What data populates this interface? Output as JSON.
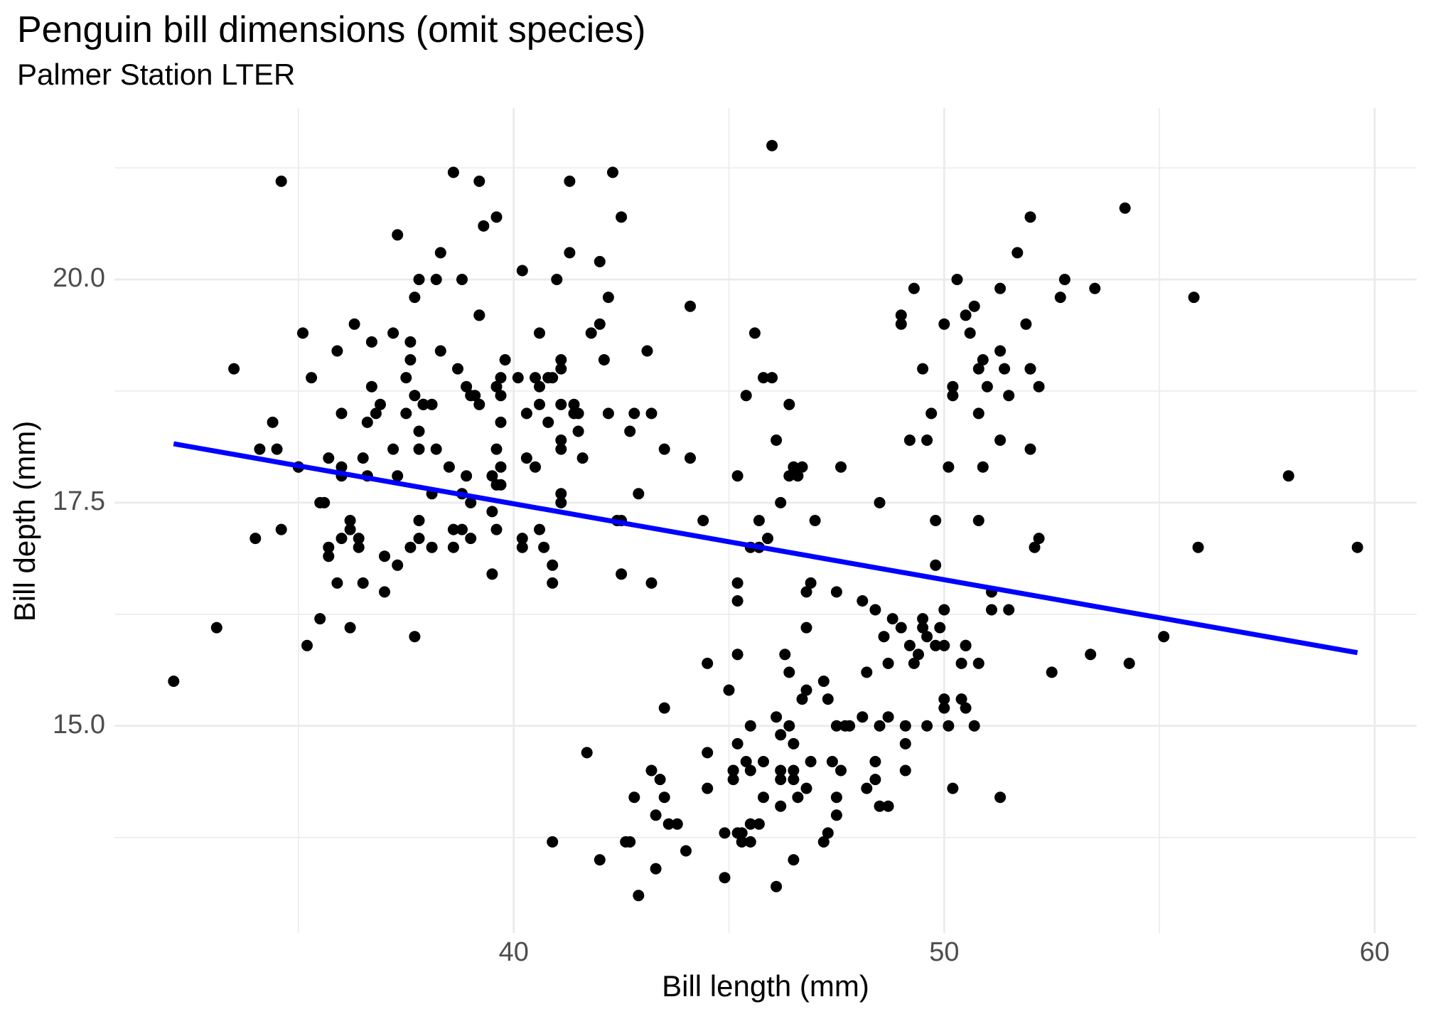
{
  "header": {
    "title": "Penguin bill dimensions (omit species)",
    "subtitle": "Palmer Station LTER"
  },
  "chart_data": {
    "type": "scatter",
    "title": "Penguin bill dimensions (omit species)",
    "subtitle": "Palmer Station LTER",
    "xlabel": "Bill length (mm)",
    "ylabel": "Bill depth (mm)",
    "xlim": [
      30.725,
      60.975
    ],
    "ylim": [
      12.68,
      21.92
    ],
    "x_tick_values": [
      40,
      50,
      60
    ],
    "x_tick_labels": [
      "40",
      "50",
      "60"
    ],
    "x_minor_ticks": [
      35,
      45,
      55
    ],
    "y_tick_values": [
      20.0,
      17.5,
      15.0
    ],
    "y_tick_labels": [
      "20.0",
      "17.5",
      "15.0"
    ],
    "y_minor_ticks": [
      21.25,
      18.75,
      16.25,
      13.75
    ],
    "grid": "on",
    "legend": "none",
    "colors": {
      "point": "#000000",
      "regression_line": "#0000FF",
      "grid_major": "#EBEBEB",
      "grid_minor": "#EBEBEB",
      "tick_text": "#4D4D4D"
    },
    "point_radius": 8,
    "regression_line": {
      "x1": 32.1,
      "y1": 18.16,
      "x2": 59.6,
      "y2": 15.82
    },
    "points": [
      [
        39.1,
        18.7
      ],
      [
        39.5,
        17.4
      ],
      [
        40.3,
        18.0
      ],
      [
        36.7,
        19.3
      ],
      [
        39.3,
        20.6
      ],
      [
        38.9,
        17.8
      ],
      [
        39.2,
        19.6
      ],
      [
        34.1,
        18.1
      ],
      [
        42.0,
        20.2
      ],
      [
        37.8,
        17.1
      ],
      [
        37.8,
        17.3
      ],
      [
        41.1,
        17.6
      ],
      [
        38.6,
        21.2
      ],
      [
        34.6,
        21.1
      ],
      [
        36.6,
        17.8
      ],
      [
        38.7,
        19.0
      ],
      [
        42.5,
        20.7
      ],
      [
        34.4,
        18.4
      ],
      [
        46.0,
        21.5
      ],
      [
        37.8,
        18.3
      ],
      [
        37.7,
        18.7
      ],
      [
        35.9,
        19.2
      ],
      [
        38.2,
        18.1
      ],
      [
        38.8,
        17.2
      ],
      [
        35.3,
        18.9
      ],
      [
        40.6,
        18.6
      ],
      [
        40.5,
        17.9
      ],
      [
        37.9,
        18.6
      ],
      [
        40.5,
        18.9
      ],
      [
        39.5,
        16.7
      ],
      [
        37.2,
        18.1
      ],
      [
        39.5,
        17.8
      ],
      [
        40.9,
        18.9
      ],
      [
        36.4,
        17.0
      ],
      [
        39.2,
        21.1
      ],
      [
        38.8,
        20.0
      ],
      [
        42.2,
        18.5
      ],
      [
        37.6,
        19.3
      ],
      [
        39.8,
        19.1
      ],
      [
        36.5,
        18.0
      ],
      [
        40.8,
        18.4
      ],
      [
        36.0,
        18.5
      ],
      [
        44.1,
        19.7
      ],
      [
        37.0,
        16.9
      ],
      [
        39.6,
        18.8
      ],
      [
        41.1,
        19.0
      ],
      [
        37.5,
        18.9
      ],
      [
        36.0,
        17.9
      ],
      [
        42.3,
        21.2
      ],
      [
        39.6,
        17.7
      ],
      [
        40.1,
        18.9
      ],
      [
        35.0,
        17.9
      ],
      [
        42.0,
        19.5
      ],
      [
        34.5,
        18.1
      ],
      [
        41.4,
        18.6
      ],
      [
        39.0,
        17.5
      ],
      [
        40.6,
        18.8
      ],
      [
        36.5,
        16.6
      ],
      [
        37.6,
        19.1
      ],
      [
        35.7,
        16.9
      ],
      [
        41.3,
        21.1
      ],
      [
        37.6,
        17.0
      ],
      [
        41.1,
        18.2
      ],
      [
        36.4,
        17.1
      ],
      [
        41.6,
        18.0
      ],
      [
        35.5,
        16.2
      ],
      [
        41.1,
        19.1
      ],
      [
        35.9,
        16.6
      ],
      [
        41.8,
        19.4
      ],
      [
        33.5,
        19.0
      ],
      [
        39.7,
        18.4
      ],
      [
        39.6,
        17.2
      ],
      [
        45.8,
        18.9
      ],
      [
        35.5,
        17.5
      ],
      [
        42.8,
        18.5
      ],
      [
        40.9,
        16.8
      ],
      [
        37.2,
        19.4
      ],
      [
        36.2,
        16.1
      ],
      [
        42.1,
        19.1
      ],
      [
        34.6,
        17.2
      ],
      [
        42.9,
        17.6
      ],
      [
        36.7,
        18.8
      ],
      [
        35.1,
        19.4
      ],
      [
        37.3,
        17.8
      ],
      [
        41.3,
        20.3
      ],
      [
        36.3,
        19.5
      ],
      [
        36.9,
        18.6
      ],
      [
        38.3,
        19.2
      ],
      [
        38.9,
        18.8
      ],
      [
        35.7,
        18.0
      ],
      [
        41.1,
        18.1
      ],
      [
        34.0,
        17.1
      ],
      [
        39.6,
        18.1
      ],
      [
        36.2,
        17.3
      ],
      [
        40.8,
        18.9
      ],
      [
        38.1,
        18.6
      ],
      [
        40.3,
        18.5
      ],
      [
        33.1,
        16.1
      ],
      [
        43.2,
        18.5
      ],
      [
        35.0,
        17.9
      ],
      [
        41.0,
        20.0
      ],
      [
        37.7,
        16.0
      ],
      [
        37.8,
        20.0
      ],
      [
        37.9,
        18.6
      ],
      [
        39.7,
        18.9
      ],
      [
        38.6,
        17.2
      ],
      [
        38.2,
        20.0
      ],
      [
        38.1,
        17.0
      ],
      [
        38.3,
        20.3
      ],
      [
        39.7,
        17.7
      ],
      [
        39.2,
        19.6
      ],
      [
        39.7,
        18.7
      ],
      [
        42.2,
        19.8
      ],
      [
        39.6,
        20.7
      ],
      [
        42.7,
        18.3
      ],
      [
        38.6,
        17.0
      ],
      [
        37.3,
        20.5
      ],
      [
        35.7,
        17.0
      ],
      [
        41.1,
        18.6
      ],
      [
        36.2,
        17.2
      ],
      [
        37.7,
        19.8
      ],
      [
        40.2,
        17.0
      ],
      [
        41.4,
        18.5
      ],
      [
        35.2,
        15.9
      ],
      [
        40.6,
        19.4
      ],
      [
        38.8,
        17.6
      ],
      [
        41.5,
        18.3
      ],
      [
        39.0,
        17.1
      ],
      [
        44.1,
        18.0
      ],
      [
        38.5,
        17.9
      ],
      [
        43.1,
        19.2
      ],
      [
        36.8,
        18.5
      ],
      [
        37.5,
        18.5
      ],
      [
        38.1,
        17.6
      ],
      [
        41.1,
        17.5
      ],
      [
        35.6,
        17.5
      ],
      [
        40.2,
        20.1
      ],
      [
        37.0,
        16.5
      ],
      [
        39.7,
        17.9
      ],
      [
        40.2,
        17.1
      ],
      [
        40.6,
        17.2
      ],
      [
        32.1,
        15.5
      ],
      [
        40.7,
        17.0
      ],
      [
        37.3,
        16.8
      ],
      [
        39.0,
        18.7
      ],
      [
        39.2,
        18.6
      ],
      [
        36.6,
        18.4
      ],
      [
        36.0,
        17.8
      ],
      [
        37.8,
        18.1
      ],
      [
        36.0,
        17.1
      ],
      [
        41.5,
        18.5
      ],
      [
        46.5,
        17.9
      ],
      [
        50.0,
        19.5
      ],
      [
        51.3,
        19.2
      ],
      [
        45.4,
        18.7
      ],
      [
        52.7,
        19.8
      ],
      [
        45.2,
        17.8
      ],
      [
        46.1,
        18.2
      ],
      [
        51.3,
        18.2
      ],
      [
        46.0,
        18.9
      ],
      [
        51.3,
        19.9
      ],
      [
        46.6,
        17.8
      ],
      [
        51.7,
        20.3
      ],
      [
        47.0,
        17.3
      ],
      [
        52.0,
        18.1
      ],
      [
        45.9,
        17.1
      ],
      [
        50.5,
        19.6
      ],
      [
        50.3,
        20.0
      ],
      [
        58.0,
        17.8
      ],
      [
        46.4,
        18.6
      ],
      [
        49.2,
        18.2
      ],
      [
        42.4,
        17.3
      ],
      [
        48.5,
        17.5
      ],
      [
        43.2,
        16.6
      ],
      [
        50.6,
        19.4
      ],
      [
        46.7,
        17.9
      ],
      [
        52.0,
        19.0
      ],
      [
        52.0,
        20.7
      ],
      [
        49.5,
        19.0
      ],
      [
        46.4,
        17.8
      ],
      [
        52.8,
        20.0
      ],
      [
        40.9,
        16.6
      ],
      [
        54.2,
        20.8
      ],
      [
        42.5,
        16.7
      ],
      [
        51.0,
        18.8
      ],
      [
        49.7,
        18.5
      ],
      [
        47.5,
        16.5
      ],
      [
        47.6,
        17.9
      ],
      [
        52.0,
        19.0
      ],
      [
        46.9,
        16.6
      ],
      [
        53.5,
        19.9
      ],
      [
        49.0,
        19.5
      ],
      [
        46.2,
        17.5
      ],
      [
        50.9,
        19.1
      ],
      [
        45.5,
        17.0
      ],
      [
        50.9,
        17.9
      ],
      [
        50.8,
        18.5
      ],
      [
        50.1,
        17.9
      ],
      [
        49.0,
        19.6
      ],
      [
        51.5,
        18.7
      ],
      [
        49.8,
        17.3
      ],
      [
        48.1,
        16.4
      ],
      [
        51.4,
        19.0
      ],
      [
        45.7,
        17.3
      ],
      [
        50.7,
        19.7
      ],
      [
        42.5,
        17.3
      ],
      [
        52.2,
        18.8
      ],
      [
        45.2,
        16.6
      ],
      [
        49.3,
        19.9
      ],
      [
        50.2,
        18.8
      ],
      [
        45.6,
        19.4
      ],
      [
        51.9,
        19.5
      ],
      [
        46.8,
        16.5
      ],
      [
        45.7,
        17.0
      ],
      [
        55.8,
        19.8
      ],
      [
        43.5,
        18.1
      ],
      [
        49.6,
        18.2
      ],
      [
        50.8,
        19.0
      ],
      [
        50.2,
        18.7
      ],
      [
        46.1,
        13.2
      ],
      [
        50.0,
        16.3
      ],
      [
        48.7,
        14.1
      ],
      [
        50.0,
        15.2
      ],
      [
        47.6,
        14.5
      ],
      [
        46.5,
        13.5
      ],
      [
        45.4,
        14.6
      ],
      [
        46.7,
        15.3
      ],
      [
        43.3,
        13.4
      ],
      [
        46.8,
        15.4
      ],
      [
        40.9,
        13.7
      ],
      [
        49.0,
        16.1
      ],
      [
        45.5,
        13.7
      ],
      [
        48.4,
        14.6
      ],
      [
        45.8,
        14.6
      ],
      [
        49.3,
        15.7
      ],
      [
        42.0,
        13.5
      ],
      [
        49.2,
        15.9
      ],
      [
        46.2,
        14.5
      ],
      [
        48.7,
        15.1
      ],
      [
        50.2,
        14.3
      ],
      [
        45.1,
        14.5
      ],
      [
        46.5,
        14.5
      ],
      [
        46.3,
        15.8
      ],
      [
        42.9,
        13.1
      ],
      [
        46.1,
        15.1
      ],
      [
        44.5,
        14.3
      ],
      [
        47.8,
        15.0
      ],
      [
        48.2,
        14.3
      ],
      [
        50.0,
        15.3
      ],
      [
        47.3,
        15.3
      ],
      [
        42.8,
        14.2
      ],
      [
        45.1,
        14.5
      ],
      [
        59.6,
        17.0
      ],
      [
        49.1,
        14.8
      ],
      [
        48.4,
        16.3
      ],
      [
        42.6,
        13.7
      ],
      [
        44.4,
        17.3
      ],
      [
        44.0,
        13.6
      ],
      [
        48.7,
        15.7
      ],
      [
        42.7,
        13.7
      ],
      [
        49.6,
        16.0
      ],
      [
        45.3,
        13.7
      ],
      [
        49.6,
        15.0
      ],
      [
        50.5,
        15.9
      ],
      [
        43.6,
        13.9
      ],
      [
        45.5,
        13.9
      ],
      [
        50.5,
        15.9
      ],
      [
        44.9,
        13.3
      ],
      [
        45.2,
        15.8
      ],
      [
        46.6,
        14.2
      ],
      [
        48.5,
        14.1
      ],
      [
        45.1,
        14.4
      ],
      [
        50.1,
        15.0
      ],
      [
        46.5,
        14.4
      ],
      [
        45.0,
        15.4
      ],
      [
        43.8,
        13.9
      ],
      [
        45.5,
        15.0
      ],
      [
        43.2,
        14.5
      ],
      [
        50.4,
        15.3
      ],
      [
        45.3,
        13.8
      ],
      [
        46.2,
        14.9
      ],
      [
        45.7,
        13.9
      ],
      [
        54.3,
        15.7
      ],
      [
        45.8,
        14.2
      ],
      [
        49.8,
        16.8
      ],
      [
        46.2,
        14.4
      ],
      [
        49.5,
        16.2
      ],
      [
        43.5,
        14.2
      ],
      [
        50.7,
        15.0
      ],
      [
        47.7,
        15.0
      ],
      [
        46.4,
        15.6
      ],
      [
        48.2,
        15.6
      ],
      [
        46.5,
        14.8
      ],
      [
        46.4,
        15.0
      ],
      [
        48.6,
        16.0
      ],
      [
        47.5,
        14.2
      ],
      [
        51.1,
        16.3
      ],
      [
        45.2,
        13.8
      ],
      [
        45.2,
        16.4
      ],
      [
        49.1,
        14.5
      ],
      [
        52.5,
        15.6
      ],
      [
        47.4,
        14.6
      ],
      [
        50.0,
        15.9
      ],
      [
        44.9,
        13.8
      ],
      [
        50.8,
        17.3
      ],
      [
        43.4,
        14.4
      ],
      [
        51.3,
        14.2
      ],
      [
        47.5,
        14.0
      ],
      [
        52.1,
        17.0
      ],
      [
        47.5,
        15.0
      ],
      [
        52.2,
        17.1
      ],
      [
        45.5,
        14.5
      ],
      [
        49.5,
        16.1
      ],
      [
        44.5,
        14.7
      ],
      [
        50.8,
        15.7
      ],
      [
        49.4,
        15.8
      ],
      [
        46.9,
        14.6
      ],
      [
        48.4,
        14.4
      ],
      [
        51.1,
        16.5
      ],
      [
        48.5,
        15.0
      ],
      [
        55.9,
        17.0
      ],
      [
        47.2,
        15.5
      ],
      [
        49.1,
        15.0
      ],
      [
        47.3,
        13.8
      ],
      [
        46.8,
        16.1
      ],
      [
        41.7,
        14.7
      ],
      [
        53.4,
        15.8
      ],
      [
        43.3,
        14.0
      ],
      [
        48.1,
        15.1
      ],
      [
        50.5,
        15.2
      ],
      [
        49.8,
        15.9
      ],
      [
        43.5,
        15.2
      ],
      [
        51.5,
        16.3
      ],
      [
        46.2,
        14.1
      ],
      [
        55.1,
        16.0
      ],
      [
        44.5,
        15.7
      ],
      [
        48.8,
        16.2
      ],
      [
        47.2,
        13.7
      ],
      [
        46.8,
        14.3
      ],
      [
        50.4,
        15.7
      ],
      [
        45.2,
        14.8
      ],
      [
        49.9,
        16.1
      ]
    ]
  }
}
